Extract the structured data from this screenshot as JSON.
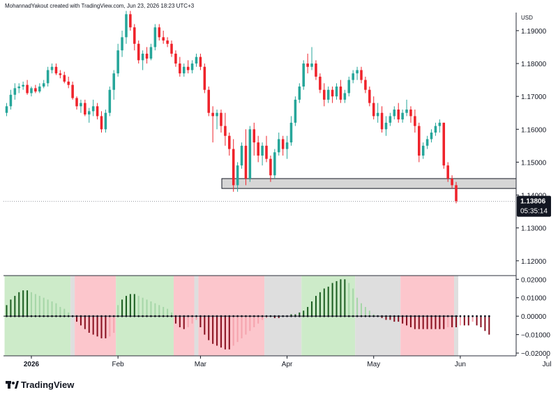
{
  "header": {
    "credit": "MohannadYakout created with TradingView.com, Jun 23, 2026 18:23 UTC+3"
  },
  "footer": {
    "brand": "TradingView"
  },
  "price_panel": {
    "currency": "USD",
    "last_price": "1.13806",
    "countdown": "05:35:14",
    "y_ticks": [
      "1.19000",
      "1.18000",
      "1.17000",
      "1.16000",
      "1.15000",
      "1.14000",
      "1.13000",
      "1.12000"
    ]
  },
  "indicator_panel": {
    "y_ticks": [
      "0.02000",
      "0.01000",
      "0.00000",
      "−0.01000",
      "−0.02000"
    ]
  },
  "x_ticks": [
    "2026",
    "Feb",
    "Mar",
    "Apr",
    "May",
    "Jun",
    "Jul"
  ],
  "colors": {
    "up_candle": "#26a69a",
    "down_candle": "#ef232b",
    "green_zone": "#cdebc9",
    "red_zone": "#fcc6cc",
    "gray_zone": "#dedede",
    "hist_pos_strong": "#1b5e20",
    "hist_pos_weak": "#a5d6a7",
    "hist_neg_strong": "#880e1e",
    "hist_neg_weak": "#f5a3ad",
    "support_zone": "#d6d6d6",
    "price_tag": "#131722"
  },
  "chart_data": [
    {
      "type": "candlestick",
      "symbol_currency": "USD",
      "ylim": [
        1.1155,
        1.1955
      ],
      "last_price": 1.13806,
      "support_zone": [
        1.142,
        1.145
      ],
      "candles": [
        [
          1.165,
          1.168,
          1.164,
          1.167
        ],
        [
          1.167,
          1.172,
          1.166,
          1.1705
        ],
        [
          1.1705,
          1.174,
          1.169,
          1.1725
        ],
        [
          1.1725,
          1.174,
          1.171,
          1.173
        ],
        [
          1.173,
          1.1745,
          1.172,
          1.1735
        ],
        [
          1.1735,
          1.175,
          1.1705,
          1.171
        ],
        [
          1.171,
          1.173,
          1.17,
          1.1725
        ],
        [
          1.1725,
          1.1735,
          1.171,
          1.1715
        ],
        [
          1.1715,
          1.174,
          1.171,
          1.173
        ],
        [
          1.173,
          1.175,
          1.1725,
          1.174
        ],
        [
          1.174,
          1.179,
          1.173,
          1.178
        ],
        [
          1.178,
          1.18,
          1.177,
          1.179
        ],
        [
          1.179,
          1.18,
          1.1765,
          1.177
        ],
        [
          1.177,
          1.178,
          1.1755,
          1.1765
        ],
        [
          1.1765,
          1.1775,
          1.174,
          1.1745
        ],
        [
          1.1745,
          1.176,
          1.1725,
          1.1735
        ],
        [
          1.1735,
          1.1745,
          1.169,
          1.1695
        ],
        [
          1.1695,
          1.17,
          1.166,
          1.167
        ],
        [
          1.167,
          1.169,
          1.165,
          1.168
        ],
        [
          1.168,
          1.169,
          1.164,
          1.1645
        ],
        [
          1.1645,
          1.1665,
          1.162,
          1.1655
        ],
        [
          1.1655,
          1.169,
          1.164,
          1.167
        ],
        [
          1.167,
          1.168,
          1.163,
          1.164
        ],
        [
          1.164,
          1.1655,
          1.159,
          1.16
        ],
        [
          1.16,
          1.166,
          1.159,
          1.165
        ],
        [
          1.165,
          1.173,
          1.164,
          1.172
        ],
        [
          1.172,
          1.178,
          1.169,
          1.177
        ],
        [
          1.177,
          1.186,
          1.176,
          1.184
        ],
        [
          1.184,
          1.19,
          1.182,
          1.188
        ],
        [
          1.188,
          1.196,
          1.186,
          1.195
        ],
        [
          1.195,
          1.196,
          1.19,
          1.191
        ],
        [
          1.191,
          1.192,
          1.184,
          1.186
        ],
        [
          1.186,
          1.187,
          1.18,
          1.181
        ],
        [
          1.181,
          1.184,
          1.178,
          1.183
        ],
        [
          1.183,
          1.185,
          1.18,
          1.1815
        ],
        [
          1.1815,
          1.186,
          1.181,
          1.185
        ],
        [
          1.185,
          1.192,
          1.184,
          1.191
        ],
        [
          1.191,
          1.192,
          1.187,
          1.188
        ],
        [
          1.188,
          1.19,
          1.186,
          1.187
        ],
        [
          1.187,
          1.188,
          1.185,
          1.186
        ],
        [
          1.186,
          1.187,
          1.182,
          1.183
        ],
        [
          1.183,
          1.184,
          1.179,
          1.18
        ],
        [
          1.18,
          1.182,
          1.176,
          1.177
        ],
        [
          1.177,
          1.18,
          1.176,
          1.179
        ],
        [
          1.179,
          1.181,
          1.177,
          1.178
        ],
        [
          1.178,
          1.181,
          1.177,
          1.18
        ],
        [
          1.18,
          1.183,
          1.179,
          1.182
        ],
        [
          1.182,
          1.183,
          1.178,
          1.179
        ],
        [
          1.179,
          1.18,
          1.171,
          1.172
        ],
        [
          1.172,
          1.173,
          1.164,
          1.165
        ],
        [
          1.165,
          1.167,
          1.156,
          1.164
        ],
        [
          1.164,
          1.166,
          1.16,
          1.165
        ],
        [
          1.165,
          1.166,
          1.159,
          1.161
        ],
        [
          1.161,
          1.165,
          1.155,
          1.158
        ],
        [
          1.158,
          1.159,
          1.152,
          1.154
        ],
        [
          1.154,
          1.157,
          1.141,
          1.143
        ],
        [
          1.143,
          1.15,
          1.141,
          1.149
        ],
        [
          1.149,
          1.156,
          1.148,
          1.155
        ],
        [
          1.155,
          1.16,
          1.143,
          1.145
        ],
        [
          1.145,
          1.161,
          1.144,
          1.16
        ],
        [
          1.16,
          1.162,
          1.152,
          1.156
        ],
        [
          1.156,
          1.158,
          1.15,
          1.152
        ],
        [
          1.152,
          1.156,
          1.149,
          1.155
        ],
        [
          1.155,
          1.158,
          1.15,
          1.151
        ],
        [
          1.151,
          1.152,
          1.144,
          1.146
        ],
        [
          1.146,
          1.154,
          1.145,
          1.153
        ],
        [
          1.153,
          1.159,
          1.152,
          1.157
        ],
        [
          1.157,
          1.158,
          1.152,
          1.154
        ],
        [
          1.154,
          1.158,
          1.151,
          1.156
        ],
        [
          1.156,
          1.164,
          1.155,
          1.162
        ],
        [
          1.162,
          1.17,
          1.161,
          1.169
        ],
        [
          1.169,
          1.174,
          1.168,
          1.173
        ],
        [
          1.173,
          1.181,
          1.172,
          1.18
        ],
        [
          1.18,
          1.183,
          1.177,
          1.179
        ],
        [
          1.179,
          1.185,
          1.178,
          1.18
        ],
        [
          1.18,
          1.181,
          1.175,
          1.176
        ],
        [
          1.176,
          1.177,
          1.171,
          1.172
        ],
        [
          1.172,
          1.174,
          1.167,
          1.169
        ],
        [
          1.169,
          1.173,
          1.168,
          1.172
        ],
        [
          1.172,
          1.173,
          1.168,
          1.17
        ],
        [
          1.17,
          1.174,
          1.169,
          1.173
        ],
        [
          1.173,
          1.175,
          1.168,
          1.169
        ],
        [
          1.169,
          1.172,
          1.168,
          1.171
        ],
        [
          1.171,
          1.176,
          1.17,
          1.175
        ],
        [
          1.175,
          1.178,
          1.174,
          1.177
        ],
        [
          1.177,
          1.179,
          1.175,
          1.178
        ],
        [
          1.178,
          1.179,
          1.174,
          1.175
        ],
        [
          1.175,
          1.176,
          1.171,
          1.172
        ],
        [
          1.172,
          1.173,
          1.167,
          1.168
        ],
        [
          1.168,
          1.17,
          1.163,
          1.164
        ],
        [
          1.164,
          1.168,
          1.162,
          1.165
        ],
        [
          1.165,
          1.167,
          1.159,
          1.16
        ],
        [
          1.16,
          1.164,
          1.158,
          1.162
        ],
        [
          1.162,
          1.165,
          1.161,
          1.164
        ],
        [
          1.164,
          1.167,
          1.163,
          1.166
        ],
        [
          1.166,
          1.168,
          1.162,
          1.163
        ],
        [
          1.163,
          1.166,
          1.162,
          1.165
        ],
        [
          1.165,
          1.169,
          1.164,
          1.166
        ],
        [
          1.166,
          1.167,
          1.162,
          1.164
        ],
        [
          1.164,
          1.166,
          1.159,
          1.161
        ],
        [
          1.161,
          1.162,
          1.15,
          1.152
        ],
        [
          1.152,
          1.156,
          1.151,
          1.155
        ],
        [
          1.155,
          1.158,
          1.154,
          1.157
        ],
        [
          1.157,
          1.16,
          1.156,
          1.159
        ],
        [
          1.159,
          1.162,
          1.158,
          1.161
        ],
        [
          1.161,
          1.163,
          1.159,
          1.162
        ],
        [
          1.162,
          1.162,
          1.148,
          1.149
        ],
        [
          1.149,
          1.15,
          1.144,
          1.145
        ],
        [
          1.145,
          1.146,
          1.142,
          1.143
        ],
        [
          1.143,
          1.144,
          1.1375,
          1.1381
        ]
      ]
    },
    {
      "type": "bar",
      "ylim": [
        -0.0215,
        0.022
      ],
      "zones": [
        {
          "state": "green",
          "from": 0,
          "to": 16
        },
        {
          "state": "gray",
          "from": 16,
          "to": 17
        },
        {
          "state": "red",
          "from": 17,
          "to": 27
        },
        {
          "state": "green",
          "from": 27,
          "to": 41
        },
        {
          "state": "red",
          "from": 41,
          "to": 46
        },
        {
          "state": "gray",
          "from": 46,
          "to": 47
        },
        {
          "state": "red",
          "from": 47,
          "to": 63
        },
        {
          "state": "gray",
          "from": 63,
          "to": 72
        },
        {
          "state": "green",
          "from": 72,
          "to": 85
        },
        {
          "state": "gray",
          "from": 85,
          "to": 96
        },
        {
          "state": "red",
          "from": 96,
          "to": 109
        },
        {
          "state": "gray",
          "from": 109,
          "to": 110
        },
        {
          "state": "red",
          "from": 110,
          "to": 111
        },
        {
          "state": "gray",
          "from": 111,
          "to": 112
        },
        {
          "state": "red",
          "from": 112,
          "to": 117
        }
      ],
      "values": [
        0.006,
        0.009,
        0.011,
        0.013,
        0.014,
        0.014,
        0.013,
        0.012,
        0.011,
        0.01,
        0.009,
        0.008,
        0.007,
        0.005,
        0.004,
        0.002,
        0.0,
        -0.003,
        -0.005,
        -0.007,
        -0.009,
        -0.01,
        -0.011,
        -0.012,
        -0.012,
        -0.011,
        -0.009,
        0.006,
        0.009,
        0.011,
        0.012,
        0.012,
        0.011,
        0.01,
        0.009,
        0.008,
        0.007,
        0.006,
        0.005,
        0.004,
        0.002,
        -0.004,
        -0.006,
        -0.007,
        -0.006,
        -0.004,
        -0.002,
        -0.006,
        -0.01,
        -0.013,
        -0.015,
        -0.016,
        -0.017,
        -0.018,
        -0.018,
        -0.016,
        -0.014,
        -0.012,
        -0.01,
        -0.008,
        -0.006,
        -0.004,
        -0.002,
        -0.001,
        0.0,
        -0.001,
        -0.001,
        0.0,
        0.0,
        0.001,
        0.001,
        0.002,
        0.003,
        0.005,
        0.008,
        0.011,
        0.013,
        0.015,
        0.016,
        0.018,
        0.019,
        0.02,
        0.02,
        0.018,
        0.015,
        0.01,
        0.007,
        0.005,
        0.003,
        0.001,
        0.0,
        -0.001,
        -0.002,
        -0.002,
        -0.003,
        -0.003,
        -0.004,
        -0.005,
        -0.006,
        -0.007,
        -0.007,
        -0.007,
        -0.007,
        -0.007,
        -0.007,
        -0.007,
        -0.007,
        -0.006,
        -0.006,
        -0.006,
        -0.005,
        -0.005,
        -0.005,
        -0.003,
        -0.005,
        -0.006,
        -0.008,
        -0.01
      ]
    }
  ]
}
